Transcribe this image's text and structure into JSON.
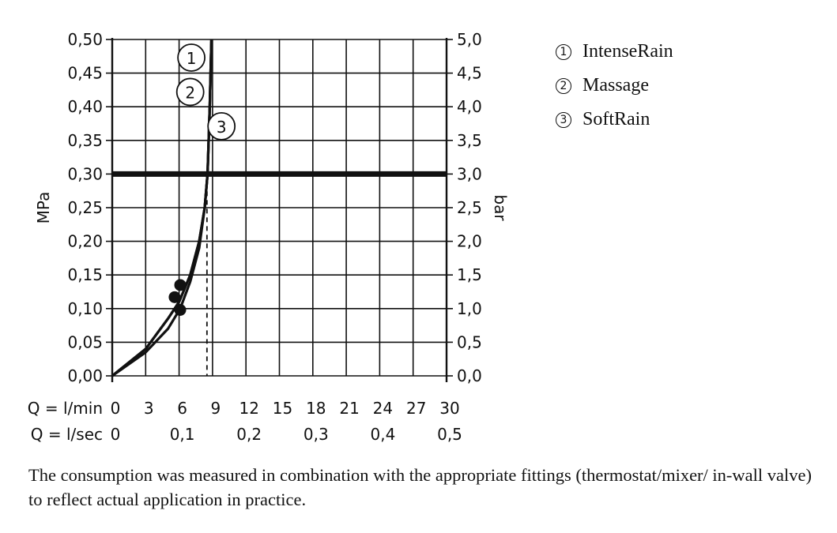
{
  "chart_data": {
    "type": "line",
    "ylabel_left": "MPa",
    "ylabel_right": "bar",
    "xlabel_lmin": "Q = l/min",
    "xlabel_lsec": "Q = l/sec",
    "y_ticks_left": [
      "0,00",
      "0,05",
      "0,10",
      "0,15",
      "0,20",
      "0,25",
      "0,30",
      "0,35",
      "0,40",
      "0,45",
      "0,50"
    ],
    "y_ticks_right": [
      "0,0",
      "0,5",
      "1,0",
      "1,5",
      "2,0",
      "2,5",
      "3,0",
      "3,5",
      "4,0",
      "4,5",
      "5,0"
    ],
    "x_ticks_lmin": [
      "0",
      "3",
      "6",
      "9",
      "12",
      "15",
      "18",
      "21",
      "24",
      "27",
      "30"
    ],
    "x_ticks_lsec": [
      "0",
      "0,1",
      "0,2",
      "0,3",
      "0,4",
      "0,5"
    ],
    "xlim": [
      0,
      30
    ],
    "ylim": [
      0,
      0.5
    ],
    "grid": true,
    "reference_line": {
      "y": 0.3,
      "x_at_ref": 8.5
    },
    "series": [
      {
        "label": "1",
        "points": [
          [
            0,
            0
          ],
          [
            3,
            0.04
          ],
          [
            5,
            0.085
          ],
          [
            6,
            0.11
          ],
          [
            7,
            0.15
          ],
          [
            7.8,
            0.2
          ],
          [
            8.3,
            0.25
          ],
          [
            8.55,
            0.3
          ],
          [
            8.75,
            0.4
          ],
          [
            8.9,
            0.5
          ]
        ]
      },
      {
        "label": "2",
        "points": [
          [
            0,
            0
          ],
          [
            3,
            0.04
          ],
          [
            5,
            0.085
          ],
          [
            6,
            0.11
          ],
          [
            7,
            0.15
          ],
          [
            7.8,
            0.2
          ],
          [
            8.3,
            0.25
          ],
          [
            8.55,
            0.3
          ],
          [
            8.75,
            0.4
          ],
          [
            8.9,
            0.5
          ]
        ]
      },
      {
        "label": "3",
        "points": [
          [
            0,
            0
          ],
          [
            3,
            0.035
          ],
          [
            5,
            0.07
          ],
          [
            6.1,
            0.1
          ],
          [
            7,
            0.14
          ],
          [
            7.8,
            0.19
          ],
          [
            8.3,
            0.25
          ],
          [
            8.55,
            0.3
          ],
          [
            8.75,
            0.4
          ],
          [
            8.9,
            0.5
          ]
        ]
      }
    ],
    "markers": [
      [
        6.1,
        0.135
      ],
      [
        5.6,
        0.117
      ],
      [
        6.1,
        0.098
      ]
    ]
  },
  "legend": [
    {
      "num": "1",
      "label": "IntenseRain"
    },
    {
      "num": "2",
      "label": "Massage"
    },
    {
      "num": "3",
      "label": "SoftRain"
    }
  ],
  "caption": "The consumption was measured in combination with the appropriate fittings (thermostat/mixer/ in-wall valve) to reflect actual application in practice."
}
